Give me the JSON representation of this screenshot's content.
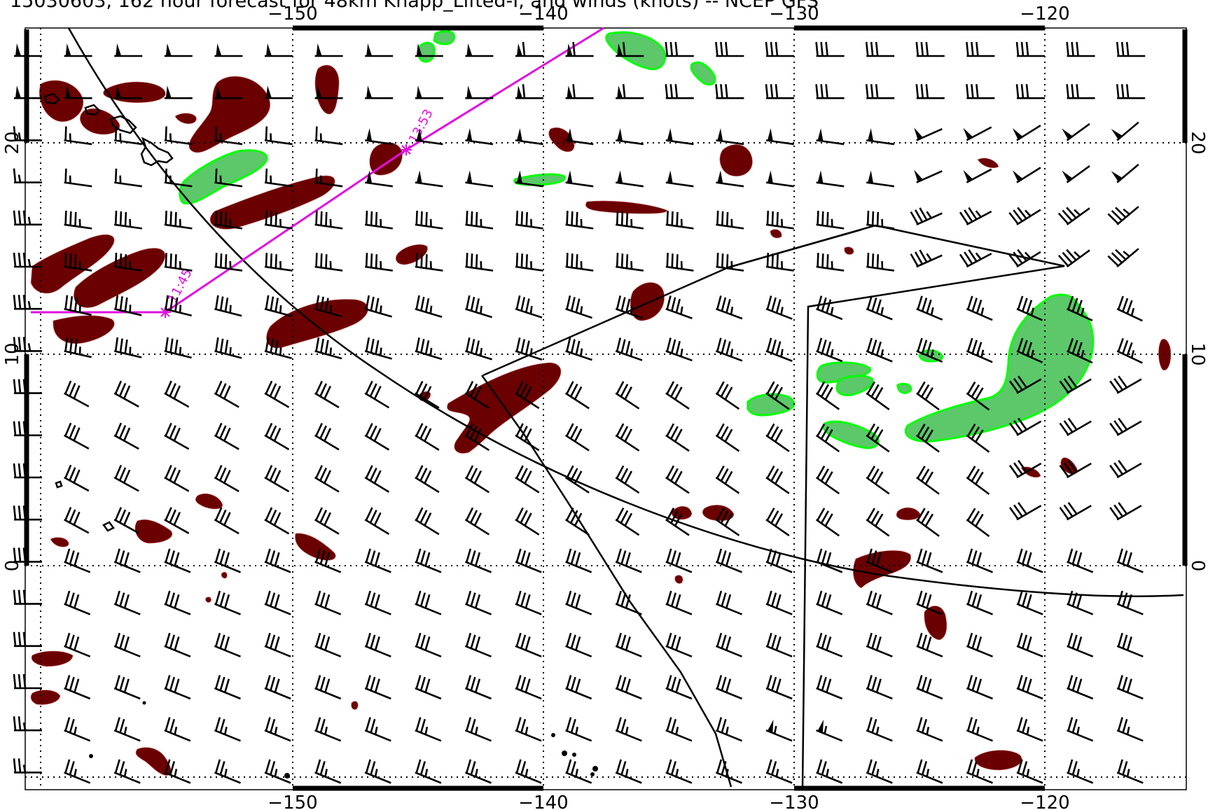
{
  "title": "15030603, 162 hour forecast for 48km Knapp_Lifted-I, and winds (knots) -- NCEP GFS",
  "lon_labels": [
    "−150",
    "−140",
    "−130",
    "−120"
  ],
  "lat_labels": [
    "20",
    "10",
    "0"
  ],
  "track": {
    "times": [
      "11:45",
      "13:53"
    ],
    "color": "#e010e0"
  },
  "colors": {
    "negative_lifted_index": "#6b0000",
    "positive_region": "#5cc86a",
    "positive_outline": "#00ff00",
    "barb": "#000000",
    "frame": "#000000"
  }
}
